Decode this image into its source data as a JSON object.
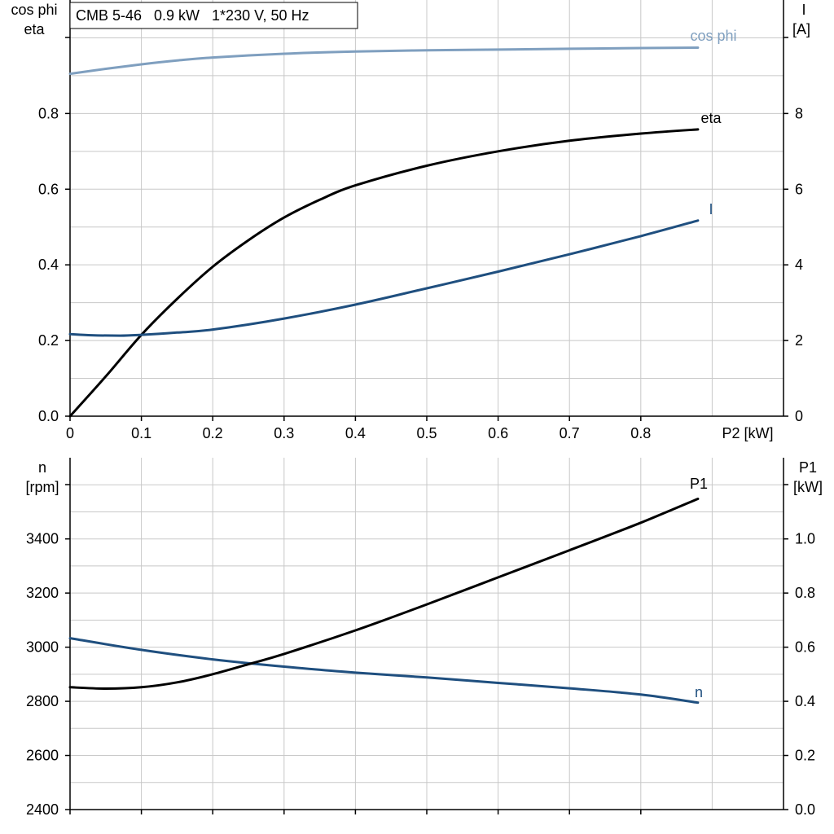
{
  "colors": {
    "cos_phi": "#7f9fbf",
    "eta": "#000000",
    "I": "#1f4f7f",
    "n": "#1f4f7f",
    "P1": "#000000",
    "grid": "#c8c8c8",
    "axis": "#000000"
  },
  "chart_data": [
    {
      "type": "line",
      "title": "CMB 5-46   0.9 kW   1*230 V, 50 Hz",
      "xlabel": "P2 [kW]",
      "xlim": [
        0,
        1.0
      ],
      "xticks": [
        0,
        0.1,
        0.2,
        0.3,
        0.4,
        0.5,
        0.6,
        0.7,
        0.8
      ],
      "xtick_labels": [
        "0",
        "0.1",
        "0.2",
        "0.3",
        "0.4",
        "0.5",
        "0.6",
        "0.7",
        "0.8"
      ],
      "y_left": {
        "label_lines": [
          "cos phi",
          "eta"
        ],
        "lim": [
          0,
          1.1
        ],
        "ticks": [
          0,
          0.2,
          0.4,
          0.6,
          0.8
        ],
        "tick_labels": [
          "0.0",
          "0.2",
          "0.4",
          "0.6",
          "0.8"
        ]
      },
      "y_right": {
        "label_lines": [
          "I",
          "[A]"
        ],
        "lim": [
          0,
          11
        ],
        "ticks": [
          0,
          2,
          4,
          6,
          8
        ],
        "tick_labels": [
          "0",
          "2",
          "4",
          "6",
          "8"
        ]
      },
      "grid": true,
      "series": [
        {
          "name": "cos phi",
          "axis": "left",
          "x": [
            0,
            0.05,
            0.1,
            0.15,
            0.2,
            0.3,
            0.4,
            0.5,
            0.6,
            0.7,
            0.8,
            0.88
          ],
          "y": [
            0.905,
            0.918,
            0.93,
            0.94,
            0.948,
            0.958,
            0.964,
            0.967,
            0.969,
            0.971,
            0.973,
            0.974
          ]
        },
        {
          "name": "eta",
          "axis": "left",
          "x": [
            0,
            0.05,
            0.1,
            0.15,
            0.2,
            0.25,
            0.3,
            0.35,
            0.4,
            0.5,
            0.6,
            0.7,
            0.8,
            0.88
          ],
          "y": [
            0,
            0.105,
            0.215,
            0.31,
            0.395,
            0.465,
            0.525,
            0.572,
            0.61,
            0.662,
            0.7,
            0.728,
            0.747,
            0.758
          ]
        },
        {
          "name": "I",
          "axis": "right",
          "x": [
            0,
            0.03,
            0.07,
            0.1,
            0.15,
            0.2,
            0.3,
            0.4,
            0.5,
            0.6,
            0.7,
            0.8,
            0.88
          ],
          "y": [
            2.17,
            2.14,
            2.13,
            2.15,
            2.21,
            2.29,
            2.58,
            2.95,
            3.38,
            3.82,
            4.28,
            4.76,
            5.17
          ]
        }
      ]
    },
    {
      "type": "line",
      "xlim": [
        0,
        1.0
      ],
      "xticks": [
        0,
        0.1,
        0.2,
        0.3,
        0.4,
        0.5,
        0.6,
        0.7,
        0.8
      ],
      "y_left": {
        "label_lines": [
          "n",
          "[rpm]"
        ],
        "lim": [
          2400,
          3700
        ],
        "ticks": [
          2400,
          2600,
          2800,
          3000,
          3200,
          3400
        ],
        "tick_labels": [
          "2400",
          "2600",
          "2800",
          "3000",
          "3200",
          "3400"
        ]
      },
      "y_right": {
        "label_lines": [
          "P1",
          "[kW]"
        ],
        "lim": [
          0,
          1.3
        ],
        "ticks": [
          0,
          0.2,
          0.4,
          0.6,
          0.8,
          1.0
        ],
        "tick_labels": [
          "0.0",
          "0.2",
          "0.4",
          "0.6",
          "0.8",
          "1.0"
        ]
      },
      "grid": true,
      "series": [
        {
          "name": "n",
          "axis": "left",
          "x": [
            0,
            0.1,
            0.2,
            0.3,
            0.4,
            0.5,
            0.6,
            0.7,
            0.8,
            0.88
          ],
          "y": [
            3033,
            2990,
            2955,
            2928,
            2906,
            2888,
            2868,
            2848,
            2825,
            2795
          ]
        },
        {
          "name": "P1",
          "axis": "right",
          "x": [
            0,
            0.05,
            0.1,
            0.15,
            0.2,
            0.25,
            0.3,
            0.4,
            0.5,
            0.6,
            0.7,
            0.8,
            0.88
          ],
          "y": [
            0.452,
            0.447,
            0.452,
            0.47,
            0.5,
            0.537,
            0.575,
            0.662,
            0.758,
            0.858,
            0.958,
            1.06,
            1.148
          ]
        }
      ]
    }
  ]
}
